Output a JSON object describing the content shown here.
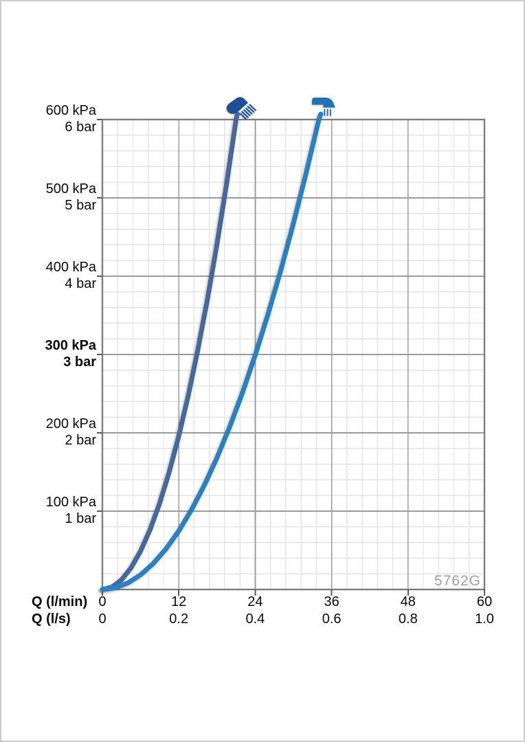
{
  "page": {
    "background": "#ffffff",
    "border_color": "#cbcbcb"
  },
  "chart_data": {
    "type": "line",
    "title": "",
    "product_code": "5762G",
    "watermark_color": "#a1a1a1",
    "grid": {
      "minor_color": "#e4e4e4",
      "major_color": "#9c9c9c",
      "frame_color": "#7d7d7d",
      "tick_color": "#5a5a5a",
      "background": "#ffffff"
    },
    "y_axis": {
      "unit_primary": "kPa",
      "unit_secondary": "bar",
      "max": 600,
      "major_step": 100,
      "minor_step": 20,
      "ticks": [
        {
          "value": 600,
          "kpa": "600 kPa",
          "bar": "6 bar",
          "bold": false
        },
        {
          "value": 500,
          "kpa": "500 kPa",
          "bar": "5 bar",
          "bold": false
        },
        {
          "value": 400,
          "kpa": "400 kPa",
          "bar": "4 bar",
          "bold": false
        },
        {
          "value": 300,
          "kpa": "300 kPa",
          "bar": "3 bar",
          "bold": true
        },
        {
          "value": 200,
          "kpa": "200 kPa",
          "bar": "2 bar",
          "bold": false
        },
        {
          "value": 100,
          "kpa": "100 kPa",
          "bar": "1 bar",
          "bold": false
        }
      ]
    },
    "x_axis": {
      "max": 60,
      "major_step": 12,
      "minor_step": 2.4,
      "rows": [
        {
          "title": "Q (l/min)",
          "ticks": [
            {
              "value": 0,
              "label": "0"
            },
            {
              "value": 12,
              "label": "12"
            },
            {
              "value": 24,
              "label": "24"
            },
            {
              "value": 36,
              "label": "36"
            },
            {
              "value": 48,
              "label": "48"
            },
            {
              "value": 60,
              "label": "60"
            }
          ]
        },
        {
          "title": "Q (l/s)",
          "ticks": [
            {
              "value": 0,
              "label": "0"
            },
            {
              "value": 12,
              "label": "0.2"
            },
            {
              "value": 24,
              "label": "0.4"
            },
            {
              "value": 36,
              "label": "0.6"
            },
            {
              "value": 48,
              "label": "0.8"
            },
            {
              "value": 60,
              "label": "1.0"
            }
          ]
        }
      ]
    },
    "series": [
      {
        "name": "hand-shower",
        "icon": "hand-shower-icon",
        "color": "#47689f",
        "q_lmin_at_600kpa": 21,
        "points": [
          [
            0,
            0
          ],
          [
            1.5,
            3.1
          ],
          [
            3,
            12.2
          ],
          [
            4.5,
            27.6
          ],
          [
            6,
            49
          ],
          [
            7.5,
            76.5
          ],
          [
            9,
            110.2
          ],
          [
            10.5,
            150
          ],
          [
            12,
            195.9
          ],
          [
            13.5,
            248
          ],
          [
            15,
            306.1
          ],
          [
            16.5,
            370.4
          ],
          [
            18,
            440.8
          ],
          [
            19.5,
            517.4
          ],
          [
            21,
            600
          ],
          [
            21.2,
            607
          ]
        ]
      },
      {
        "name": "spout",
        "icon": "spout-icon",
        "color": "#2b80c4",
        "q_lmin_at_600kpa": 34,
        "points": [
          [
            0,
            0
          ],
          [
            2,
            2.1
          ],
          [
            4,
            8.3
          ],
          [
            6,
            18.7
          ],
          [
            8,
            33.2
          ],
          [
            10,
            51.9
          ],
          [
            12,
            74.7
          ],
          [
            14,
            101.7
          ],
          [
            16,
            132.9
          ],
          [
            18,
            168.2
          ],
          [
            20,
            207.6
          ],
          [
            22,
            251.2
          ],
          [
            24,
            299
          ],
          [
            26,
            350.9
          ],
          [
            28,
            406.9
          ],
          [
            30,
            467.1
          ],
          [
            32,
            531.5
          ],
          [
            34,
            600
          ],
          [
            34.3,
            607
          ]
        ]
      }
    ],
    "icons": {
      "hand_shower_color": "#1d4f96",
      "spout_color": "#2173b4"
    },
    "legend_position": "top-above-curves",
    "grid_on": true
  }
}
